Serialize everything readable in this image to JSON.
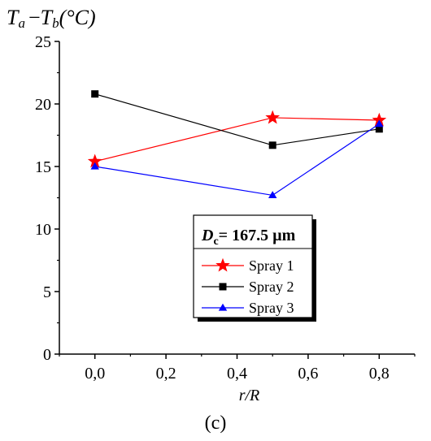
{
  "chart_data": {
    "type": "line",
    "ylabel_parts": {
      "t1": "T",
      "s1": "a",
      "minus": "−",
      "t2": "T",
      "s2": "b",
      "unit": "(°C)"
    },
    "xlabel": "r/R",
    "panel_label": "(c)",
    "x_ticks": [
      "0,0",
      "0,2",
      "0,4",
      "0,6",
      "0,8"
    ],
    "x_tick_values": [
      0.0,
      0.2,
      0.4,
      0.6,
      0.8
    ],
    "y_ticks": [
      "0",
      "5",
      "10",
      "15",
      "20",
      "25"
    ],
    "y_tick_values": [
      0,
      5,
      10,
      15,
      20,
      25
    ],
    "xlim": [
      -0.1,
      0.9
    ],
    "ylim": [
      0,
      25
    ],
    "x": [
      0.0,
      0.5,
      0.8
    ],
    "series": [
      {
        "name": "Spray 1",
        "values": [
          15.4,
          18.9,
          18.7
        ],
        "color": "#ff0000",
        "marker": "star"
      },
      {
        "name": "Spray 2",
        "values": [
          20.8,
          16.7,
          18.0
        ],
        "color": "#000000",
        "marker": "square"
      },
      {
        "name": "Spray 3",
        "values": [
          15.0,
          12.7,
          18.4
        ],
        "color": "#0000ff",
        "marker": "triangle"
      }
    ],
    "legend": {
      "title_d": "D",
      "title_sub": "c",
      "title_rest": "= 167.5 µm",
      "placement": "bottom-right"
    },
    "grid": false
  }
}
